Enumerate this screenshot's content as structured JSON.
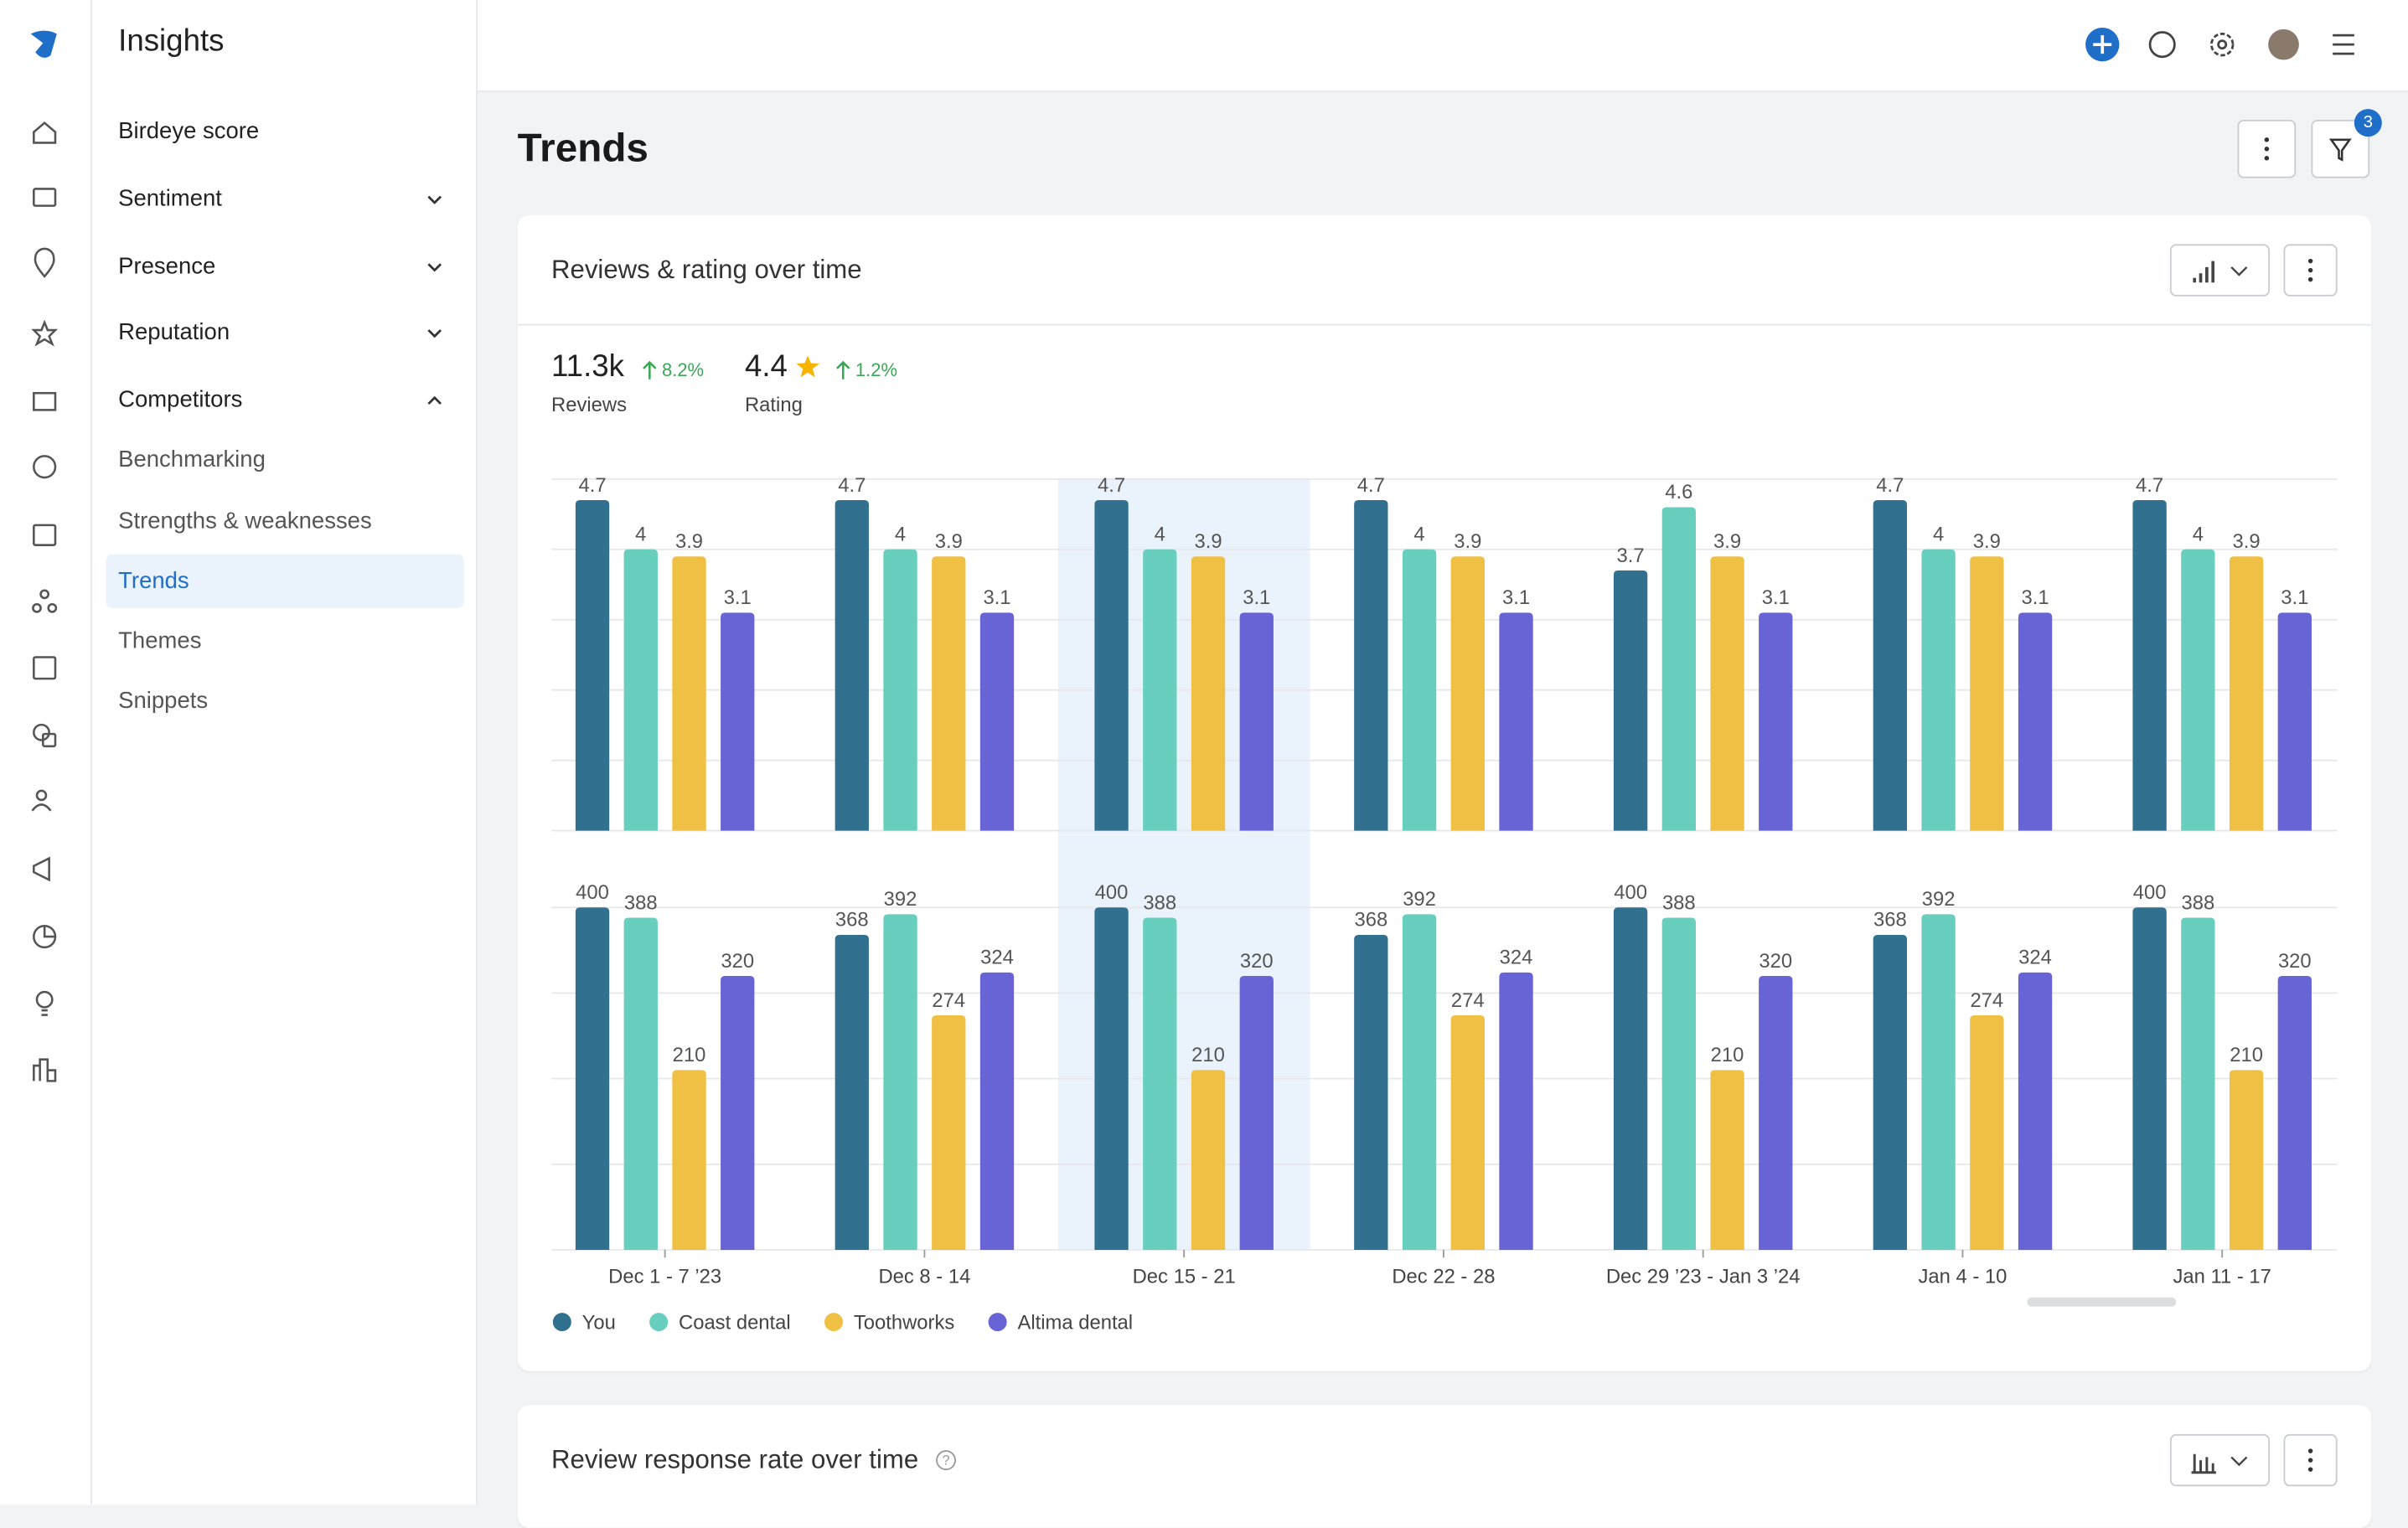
{
  "sidebar": {
    "title": "Insights",
    "items": [
      {
        "label": "Birdeye score"
      },
      {
        "label": "Sentiment",
        "chevron": "down"
      },
      {
        "label": "Presence",
        "chevron": "down"
      },
      {
        "label": "Reputation",
        "chevron": "down"
      },
      {
        "label": "Competitors",
        "chevron": "up",
        "children": [
          {
            "label": "Benchmarking"
          },
          {
            "label": "Strengths & weaknesses"
          },
          {
            "label": "Trends",
            "active": true
          },
          {
            "label": "Themes"
          },
          {
            "label": "Snippets"
          }
        ]
      }
    ]
  },
  "header": {
    "filter_badge": "3"
  },
  "page_title": "Trends",
  "cards": [
    {
      "title": "Reviews & rating over time",
      "stats": [
        {
          "value": "11.3k",
          "change": "8.2%",
          "label": "Reviews"
        },
        {
          "value": "4.4",
          "change": "1.2%",
          "label": "Rating"
        }
      ]
    },
    {
      "title": "Review response rate over time"
    }
  ],
  "chart_data": [
    {
      "type": "bar",
      "ylim": [
        0,
        5
      ],
      "yticks": [
        0,
        1,
        2,
        3,
        4,
        5
      ],
      "grid": true,
      "highlighted_category": 2,
      "series": [
        {
          "name": "You",
          "color": "#32708f",
          "values": [
            4.7,
            4.7,
            4.7,
            4.7,
            3.7,
            4.7,
            4.7
          ]
        },
        {
          "name": "Coast dental",
          "color": "#68cfbf",
          "values": [
            4.0,
            4.0,
            4.0,
            4.0,
            4.6,
            4.0,
            4.0
          ]
        },
        {
          "name": "Toothworks",
          "color": "#f0c044",
          "values": [
            3.9,
            3.9,
            3.9,
            3.9,
            3.9,
            3.9,
            3.9
          ]
        },
        {
          "name": "Altima dental",
          "color": "#6964d6",
          "values": [
            3.1,
            3.1,
            3.1,
            3.1,
            3.1,
            3.1,
            3.1
          ]
        }
      ]
    },
    {
      "type": "bar",
      "ylim": [
        0,
        400
      ],
      "yticks": [
        0,
        100,
        200,
        300,
        400
      ],
      "grid": true,
      "categories": [
        "Dec 1 - 7 ’23",
        "Dec 8 - 14",
        "Dec 15 - 21",
        "Dec 22 - 28",
        "Dec 29 ’23 - Jan 3 ’24",
        "Jan 4 - 10",
        "Jan 11 - 17"
      ],
      "series": [
        {
          "color": "#32708f",
          "values": [
            400,
            368,
            400,
            368,
            400,
            368,
            400
          ]
        },
        {
          "color": "#68cfbf",
          "values": [
            388,
            392,
            388,
            392,
            388,
            392,
            388
          ]
        },
        {
          "color": "#f0c044",
          "values": [
            210,
            274,
            210,
            274,
            210,
            274,
            210
          ]
        },
        {
          "color": "#6964d6",
          "values": [
            320,
            324,
            320,
            324,
            320,
            324,
            320
          ]
        }
      ]
    }
  ]
}
